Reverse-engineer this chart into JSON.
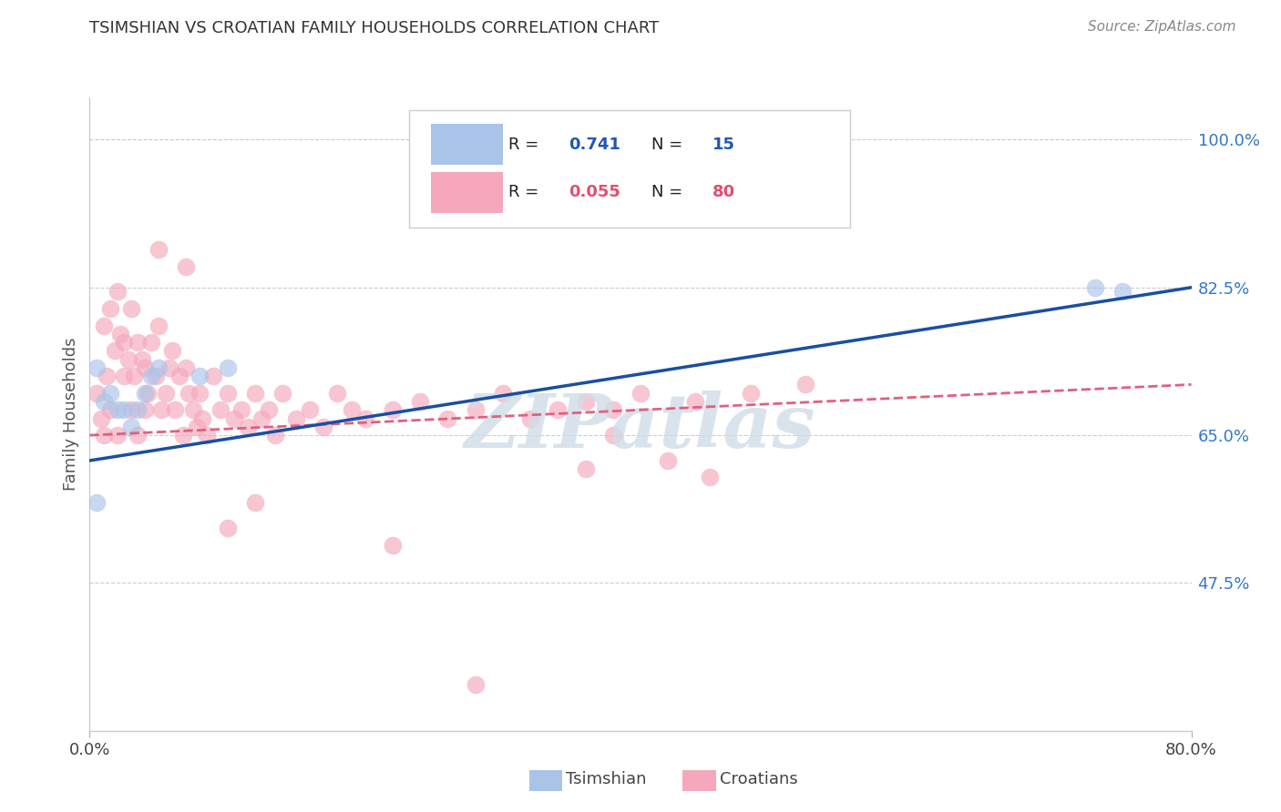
{
  "title": "TSIMSHIAN VS CROATIAN FAMILY HOUSEHOLDS CORRELATION CHART",
  "source": "Source: ZipAtlas.com",
  "ylabel": "Family Households",
  "xmin": 0.0,
  "xmax": 0.8,
  "ymin": 0.3,
  "ymax": 1.05,
  "yticks": [
    0.475,
    0.65,
    0.825,
    1.0
  ],
  "ytick_labels": [
    "47.5%",
    "65.0%",
    "82.5%",
    "100.0%"
  ],
  "tsimshian_color": "#aac4e8",
  "croatian_color": "#f5a8bc",
  "tsimshian_line_color": "#1a4fa0",
  "croatian_line_color": "#e06080",
  "watermark_color": "#d0dce8",
  "background_color": "#ffffff",
  "grid_color": "#cccccc",
  "tsimshian_x": [
    0.005,
    0.01,
    0.015,
    0.02,
    0.025,
    0.03,
    0.035,
    0.04,
    0.045,
    0.05,
    0.08,
    0.1,
    0.005,
    0.73,
    0.75
  ],
  "tsimshian_y": [
    0.73,
    0.69,
    0.7,
    0.68,
    0.68,
    0.66,
    0.68,
    0.7,
    0.72,
    0.73,
    0.72,
    0.73,
    0.57,
    0.825,
    0.82
  ],
  "tsimshian_line_x0": 0.0,
  "tsimshian_line_x1": 0.8,
  "tsimshian_line_y0": 0.62,
  "tsimshian_line_y1": 0.825,
  "croatian_line_x0": 0.0,
  "croatian_line_x1": 0.8,
  "croatian_line_y0": 0.65,
  "croatian_line_y1": 0.71,
  "croatian_x": [
    0.005,
    0.008,
    0.01,
    0.01,
    0.012,
    0.015,
    0.015,
    0.018,
    0.02,
    0.02,
    0.022,
    0.025,
    0.025,
    0.028,
    0.03,
    0.03,
    0.032,
    0.035,
    0.035,
    0.038,
    0.04,
    0.04,
    0.042,
    0.045,
    0.048,
    0.05,
    0.052,
    0.055,
    0.058,
    0.06,
    0.062,
    0.065,
    0.068,
    0.07,
    0.072,
    0.075,
    0.078,
    0.08,
    0.082,
    0.085,
    0.09,
    0.095,
    0.1,
    0.105,
    0.11,
    0.115,
    0.12,
    0.125,
    0.13,
    0.135,
    0.14,
    0.15,
    0.16,
    0.17,
    0.18,
    0.19,
    0.2,
    0.22,
    0.24,
    0.26,
    0.28,
    0.3,
    0.32,
    0.34,
    0.36,
    0.38,
    0.4,
    0.44,
    0.48,
    0.52,
    0.1,
    0.12,
    0.38,
    0.45,
    0.05,
    0.07,
    0.42,
    0.36,
    0.22,
    0.28
  ],
  "croatian_y": [
    0.7,
    0.67,
    0.78,
    0.65,
    0.72,
    0.8,
    0.68,
    0.75,
    0.82,
    0.65,
    0.77,
    0.76,
    0.72,
    0.74,
    0.8,
    0.68,
    0.72,
    0.76,
    0.65,
    0.74,
    0.73,
    0.68,
    0.7,
    0.76,
    0.72,
    0.78,
    0.68,
    0.7,
    0.73,
    0.75,
    0.68,
    0.72,
    0.65,
    0.73,
    0.7,
    0.68,
    0.66,
    0.7,
    0.67,
    0.65,
    0.72,
    0.68,
    0.7,
    0.67,
    0.68,
    0.66,
    0.7,
    0.67,
    0.68,
    0.65,
    0.7,
    0.67,
    0.68,
    0.66,
    0.7,
    0.68,
    0.67,
    0.68,
    0.69,
    0.67,
    0.68,
    0.7,
    0.67,
    0.68,
    0.69,
    0.68,
    0.7,
    0.69,
    0.7,
    0.71,
    0.54,
    0.57,
    0.65,
    0.6,
    0.87,
    0.85,
    0.62,
    0.61,
    0.52,
    0.355
  ]
}
